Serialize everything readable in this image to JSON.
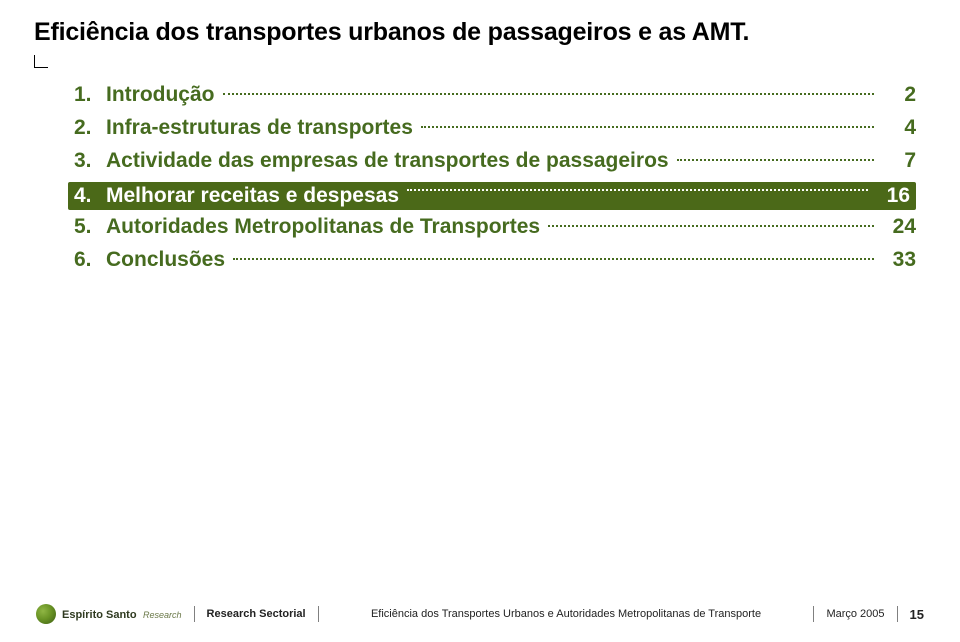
{
  "title": "Eficiência dos transportes urbanos de passageiros e as AMT.",
  "toc": {
    "highlight_index": 3,
    "items": [
      {
        "num": "1.",
        "label": "Introdução",
        "page": "2"
      },
      {
        "num": "2.",
        "label": "Infra-estruturas de transportes",
        "page": "4"
      },
      {
        "num": "3.",
        "label": "Actividade das empresas de transportes de passageiros",
        "page": "7"
      },
      {
        "num": "4.",
        "label": "Melhorar receitas e despesas",
        "page": "16"
      },
      {
        "num": "5.",
        "label": "Autoridades Metropolitanas de Transportes",
        "page": "24"
      },
      {
        "num": "6.",
        "label": "Conclusões",
        "page": "33"
      }
    ]
  },
  "footer": {
    "logo_text": "Espírito Santo",
    "logo_sub": "Research",
    "segment": "Research Sectorial",
    "doc_title": "Eficiência dos Transportes Urbanos e Autoridades Metropolitanas de Transporte",
    "date": "Março 2005",
    "page": "15"
  },
  "colors": {
    "accent": "#466b1f",
    "highlight_bg": "#4b6918",
    "highlight_fg": "#ffffff",
    "text": "#000000"
  }
}
